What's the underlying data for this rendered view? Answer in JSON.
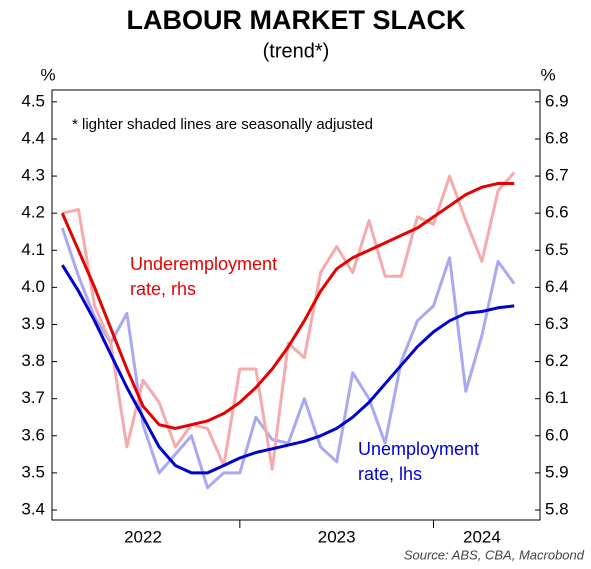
{
  "chart_data": {
    "type": "line",
    "title": "LABOUR MARKET SLACK",
    "subtitle": "(trend*)",
    "y_label": "%",
    "y2_label": "%",
    "source": "Source: ABS, CBA, Macrobond",
    "annotations": [
      "*  lighter shaded lines are seasonally adjusted",
      "Underemployment",
      "rate, rhs",
      "Unemployment",
      "rate, lhs"
    ],
    "x": [
      2022.083,
      2022.167,
      2022.25,
      2022.333,
      2022.417,
      2022.5,
      2022.583,
      2022.667,
      2022.75,
      2022.833,
      2022.917,
      2023,
      2023.083,
      2023.167,
      2023.25,
      2023.333,
      2023.417,
      2023.5,
      2023.583,
      2023.667,
      2023.75,
      2023.833,
      2023.917,
      2024,
      2024.083,
      2024.167,
      2024.25,
      2024.333,
      2024.417
    ],
    "xlim": [
      2022.03,
      2024.55
    ],
    "xticks": [
      {
        "value": 2022.5,
        "label": "2022"
      },
      {
        "value": 2023.5,
        "label": "2023"
      },
      {
        "value": 2024.25,
        "label": "2024"
      }
    ],
    "xminor": [
      2023,
      2024
    ],
    "ylim": [
      3.373,
      4.532
    ],
    "yticks": [
      3.4,
      3.5,
      3.6,
      3.7,
      3.8,
      3.9,
      {
        "value": 4,
        "label": "4.0"
      },
      4.1,
      4.2,
      4.3,
      4.4,
      4.5
    ],
    "y2lim": [
      5.773,
      6.932
    ],
    "y2ticks": [
      5.8,
      5.9,
      {
        "value": 6,
        "label": "6.0"
      },
      6.1,
      6.2,
      6.3,
      6.4,
      6.5,
      6.6,
      6.7,
      6.8,
      6.9
    ],
    "grid": false,
    "series": [
      {
        "name": "Unemployment rate, seasonally adjusted",
        "color": "#a9a9f2",
        "values": [
          4.16,
          4.03,
          3.92,
          3.85,
          3.93,
          3.63,
          3.5,
          3.55,
          3.6,
          3.46,
          3.5,
          3.5,
          3.65,
          3.59,
          3.58,
          3.7,
          3.57,
          3.53,
          3.77,
          3.7,
          3.58,
          3.8,
          3.91,
          3.95,
          4.08,
          3.72,
          3.87,
          4.07,
          4.01
        ]
      },
      {
        "name": "Underemployment rate, seasonally adjusted",
        "color": "#f5abab",
        "axis": "y2",
        "values": [
          6.6,
          6.61,
          6.35,
          6.25,
          5.97,
          6.15,
          6.09,
          5.97,
          6.03,
          6.02,
          5.92,
          6.18,
          6.18,
          5.91,
          6.25,
          6.21,
          6.44,
          6.51,
          6.44,
          6.58,
          6.43,
          6.43,
          6.59,
          6.57,
          6.7,
          6.58,
          6.47,
          6.66,
          6.71
        ]
      },
      {
        "name": "Unemployment rate, lhs",
        "color": "#0000d0",
        "values": [
          4.06,
          3.99,
          3.91,
          3.82,
          3.73,
          3.65,
          3.57,
          3.52,
          3.5,
          3.5,
          3.52,
          3.54,
          3.555,
          3.565,
          3.575,
          3.585,
          3.6,
          3.62,
          3.65,
          3.69,
          3.74,
          3.79,
          3.84,
          3.88,
          3.91,
          3.93,
          3.935,
          3.945,
          3.95
        ]
      },
      {
        "name": "Underemployment rate, rhs",
        "color": "#e60000",
        "axis": "y2",
        "values": [
          6.6,
          6.5,
          6.4,
          6.29,
          6.18,
          6.08,
          6.03,
          6.02,
          6.03,
          6.04,
          6.06,
          6.09,
          6.13,
          6.18,
          6.24,
          6.31,
          6.39,
          6.45,
          6.48,
          6.5,
          6.52,
          6.54,
          6.56,
          6.59,
          6.62,
          6.65,
          6.67,
          6.68,
          6.68
        ]
      }
    ]
  }
}
